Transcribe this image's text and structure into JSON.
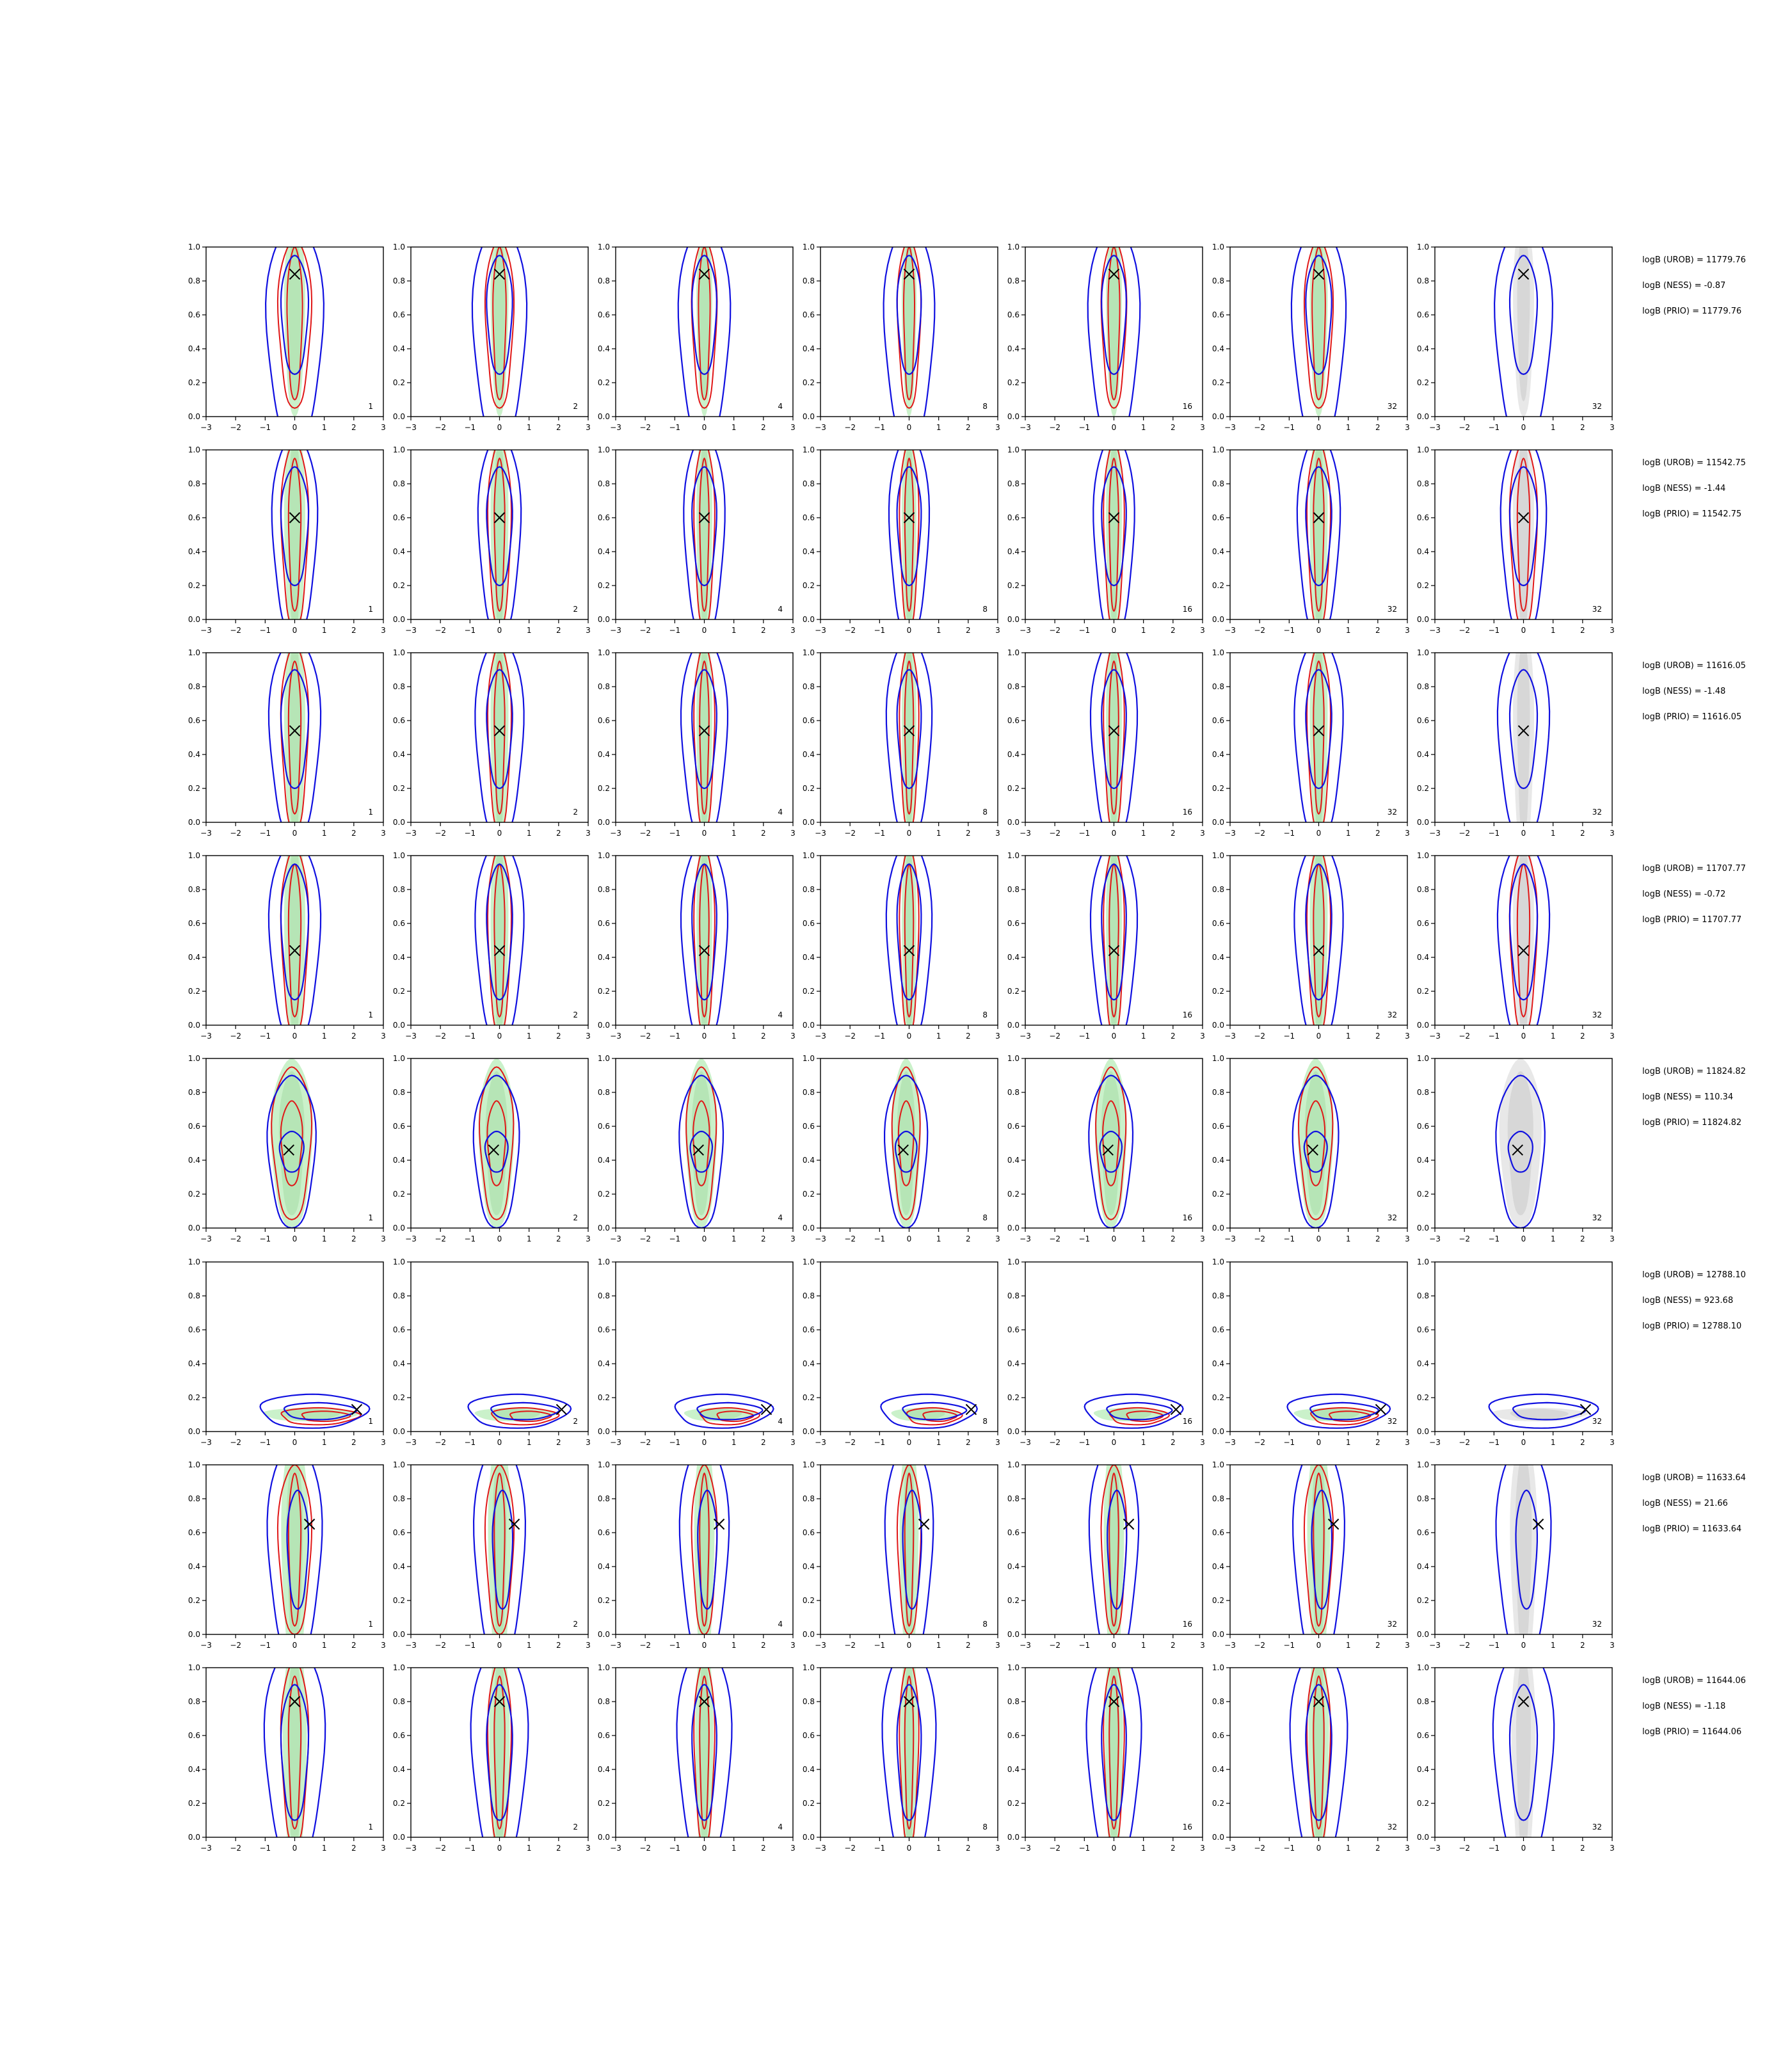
{
  "chart_data": {
    "type": "contour-grid",
    "rows": 8,
    "cols": 7,
    "xlim": [
      -3,
      3
    ],
    "ylim": [
      0,
      1
    ],
    "xticks": [
      "−3",
      "−2",
      "−1",
      "0",
      "1",
      "2",
      "3"
    ],
    "yticks": [
      "0.0",
      "0.2",
      "0.4",
      "0.6",
      "0.8",
      "1.0"
    ],
    "panel_labels": [
      "1",
      "2",
      "4",
      "8",
      "16",
      "32",
      "32"
    ],
    "colors": {
      "blue": "#1010e0",
      "red": "#e01818",
      "green_fill": "#b8ecb8",
      "gray_fill": "#d6d6d6",
      "marker": "#000000"
    },
    "rows_data": [
      {
        "marker": [
          0.0,
          0.84
        ],
        "annotations": [
          "logB (UROB) = 11779.76",
          "logB (NESS) = -0.87",
          "logB (PRIO) = 11779.76"
        ]
      },
      {
        "marker": [
          0.0,
          0.6
        ],
        "annotations": [
          "logB (UROB) = 11542.75",
          "logB (NESS) = -1.44",
          "logB (PRIO) = 11542.75"
        ]
      },
      {
        "marker": [
          0.0,
          0.54
        ],
        "annotations": [
          "logB (UROB) = 11616.05",
          "logB (NESS) = -1.48",
          "logB (PRIO) = 11616.05"
        ]
      },
      {
        "marker": [
          0.0,
          0.44
        ],
        "annotations": [
          "logB (UROB) = 11707.77",
          "logB (NESS) = -0.72",
          "logB (PRIO) = 11707.77"
        ]
      },
      {
        "marker": [
          -0.2,
          0.46
        ],
        "annotations": [
          "logB (UROB) = 11824.82",
          "logB (NESS) = 110.34",
          "logB (PRIO) = 11824.82"
        ]
      },
      {
        "marker": [
          2.1,
          0.13
        ],
        "annotations": [
          "logB (UROB) = 12788.10",
          "logB (NESS) = 923.68",
          "logB (PRIO) = 12788.10"
        ]
      },
      {
        "marker": [
          0.5,
          0.65
        ],
        "annotations": [
          "logB (UROB) = 11633.64",
          "logB (NESS) = 21.66",
          "logB (PRIO) = 11633.64"
        ]
      },
      {
        "marker": [
          0.0,
          0.8
        ],
        "annotations": [
          "logB (UROB) = 11644.06",
          "logB (NESS) = -1.18",
          "logB (PRIO) = 11644.06"
        ]
      }
    ]
  }
}
